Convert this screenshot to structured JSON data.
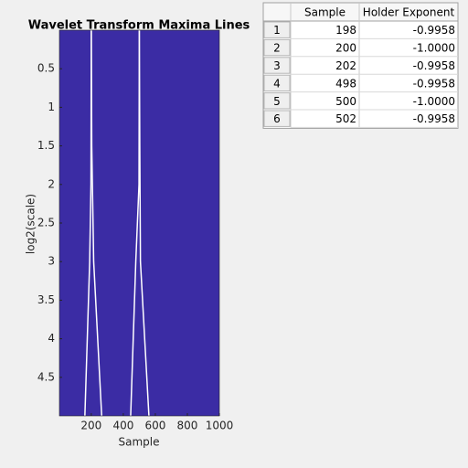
{
  "chart_data": {
    "type": "line",
    "title": "Wavelet Transform Maxima Lines",
    "xlabel": "Sample",
    "ylabel": "log2(scale)",
    "xlim": [
      1,
      1000
    ],
    "ylim": [
      0,
      5
    ],
    "y_reversed": true,
    "xticks": [
      200,
      400,
      600,
      800,
      1000
    ],
    "yticks": [
      0.5,
      1,
      1.5,
      2,
      2.5,
      3,
      3.5,
      4,
      4.5
    ],
    "background": "#3b2ca4",
    "series": [
      {
        "color": "#ffffff",
        "x": [
          200,
          198,
          190,
          160
        ],
        "values": [
          0,
          2,
          3,
          5
        ]
      },
      {
        "color": "#ffffff",
        "x": [
          200,
          203,
          215,
          265
        ],
        "values": [
          0,
          1.5,
          3,
          5
        ]
      },
      {
        "color": "#ffffff",
        "x": [
          500,
          498,
          478,
          446
        ],
        "values": [
          0,
          2,
          3,
          5
        ]
      },
      {
        "color": "#ffffff",
        "x": [
          500,
          503,
          507,
          560
        ],
        "values": [
          0,
          1.5,
          3,
          5
        ]
      }
    ]
  },
  "table": {
    "columns": [
      "Sample",
      "Holder Exponent"
    ],
    "row_labels": [
      1,
      2,
      3,
      4,
      5,
      6
    ],
    "rows": [
      [
        198,
        "-0.9958"
      ],
      [
        200,
        "-1.0000"
      ],
      [
        202,
        "-0.9958"
      ],
      [
        498,
        "-0.9958"
      ],
      [
        500,
        "-1.0000"
      ],
      [
        502,
        "-0.9958"
      ]
    ]
  }
}
